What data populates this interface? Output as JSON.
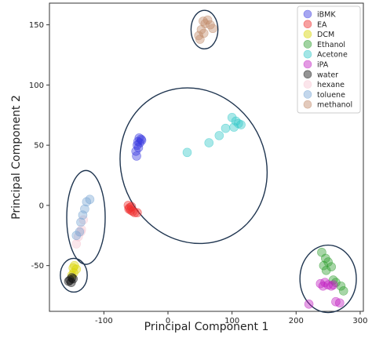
{
  "chart_data": {
    "type": "scatter",
    "xlabel": "Principal Component 1",
    "ylabel": "Principal Component 2",
    "xlim": [
      -185,
      305
    ],
    "ylim": [
      -88,
      168
    ],
    "xticks": [
      -100,
      0,
      100,
      200,
      300
    ],
    "yticks": [
      -50,
      0,
      50,
      100,
      150
    ],
    "grid": false,
    "legend_position": "top-right",
    "series": [
      {
        "name": "iBMK",
        "color": "#3a3ae0",
        "points": [
          [
            -45,
            56
          ],
          [
            -42,
            55
          ],
          [
            -47,
            53
          ],
          [
            -44,
            52
          ],
          [
            -41,
            54
          ],
          [
            -48,
            50
          ],
          [
            -50,
            45
          ],
          [
            -49,
            41
          ],
          [
            -46,
            48
          ]
        ]
      },
      {
        "name": "EA",
        "color": "#ee2c2c",
        "points": [
          [
            -60,
            -2
          ],
          [
            -62,
            0
          ],
          [
            -58,
            -4
          ],
          [
            -55,
            -5
          ],
          [
            -52,
            -6
          ],
          [
            -48,
            -6
          ],
          [
            -61,
            -3
          ],
          [
            -57,
            -1
          ]
        ]
      },
      {
        "name": "DCM",
        "color": "#d8d400",
        "points": [
          [
            -146,
            -50
          ],
          [
            -143,
            -53
          ],
          [
            -147,
            -56
          ],
          [
            -150,
            -58
          ],
          [
            -148,
            -52
          ]
        ]
      },
      {
        "name": "Ethanol",
        "color": "#2e9e2e",
        "points": [
          [
            240,
            -39
          ],
          [
            246,
            -44
          ],
          [
            250,
            -47
          ],
          [
            243,
            -50
          ],
          [
            255,
            -51
          ],
          [
            247,
            -54
          ],
          [
            262,
            -64
          ],
          [
            270,
            -67
          ],
          [
            274,
            -71
          ],
          [
            258,
            -62
          ]
        ]
      },
      {
        "name": "Acetone",
        "color": "#33c8c8",
        "points": [
          [
            100,
            73
          ],
          [
            106,
            70
          ],
          [
            110,
            68
          ],
          [
            114,
            67
          ],
          [
            103,
            65
          ],
          [
            90,
            64
          ],
          [
            80,
            58
          ],
          [
            64,
            52
          ],
          [
            30,
            44
          ]
        ]
      },
      {
        "name": "iPA",
        "color": "#c020c0",
        "points": [
          [
            238,
            -65
          ],
          [
            245,
            -64
          ],
          [
            250,
            -66
          ],
          [
            258,
            -66
          ],
          [
            255,
            -67
          ],
          [
            242,
            -67
          ],
          [
            220,
            -82
          ],
          [
            262,
            -80
          ],
          [
            268,
            -81
          ]
        ]
      },
      {
        "name": "water",
        "color": "#111111",
        "points": [
          [
            -150,
            -60
          ],
          [
            -153,
            -62
          ],
          [
            -155,
            -63
          ],
          [
            -151,
            -64
          ],
          [
            -148,
            -61
          ]
        ]
      },
      {
        "name": "hexane",
        "color": "#f6c6d2",
        "points": [
          [
            -132,
            -12
          ],
          [
            -135,
            -20
          ],
          [
            -140,
            -26
          ],
          [
            -143,
            -32
          ],
          [
            -136,
            -22
          ]
        ]
      },
      {
        "name": "toluene",
        "color": "#7aa6d4",
        "points": [
          [
            -122,
            5
          ],
          [
            -127,
            3
          ],
          [
            -130,
            -3
          ],
          [
            -133,
            -8
          ],
          [
            -136,
            -14
          ],
          [
            -138,
            -22
          ],
          [
            -143,
            -25
          ]
        ]
      },
      {
        "name": "methanol",
        "color": "#c08a6a",
        "points": [
          [
            55,
            153
          ],
          [
            58,
            151
          ],
          [
            62,
            154
          ],
          [
            66,
            150
          ],
          [
            70,
            147
          ],
          [
            52,
            146
          ],
          [
            48,
            141
          ],
          [
            50,
            138
          ],
          [
            56,
            143
          ]
        ]
      }
    ],
    "ellipses": [
      {
        "cx": 57,
        "cy": 146,
        "rx": 21,
        "ry": 16,
        "angle": 0
      },
      {
        "cx": -128,
        "cy": -10,
        "rx": 30,
        "ry": 39,
        "angle": 0
      },
      {
        "cx": -147,
        "cy": -58,
        "rx": 21,
        "ry": 14,
        "angle": 0
      },
      {
        "cx": 40,
        "cy": 33,
        "rx": 112,
        "ry": 66,
        "angle": 28
      },
      {
        "cx": 250,
        "cy": -61,
        "rx": 44,
        "ry": 28,
        "angle": 0
      }
    ]
  }
}
